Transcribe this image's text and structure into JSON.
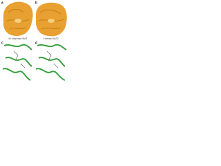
{
  "panels": [
    {
      "letter": "a",
      "caption": "M. Marinum NAT"
    },
    {
      "letter": "b",
      "caption": "Human NAT2"
    },
    {
      "letter": "c"
    },
    {
      "letter": "d"
    }
  ]
}
